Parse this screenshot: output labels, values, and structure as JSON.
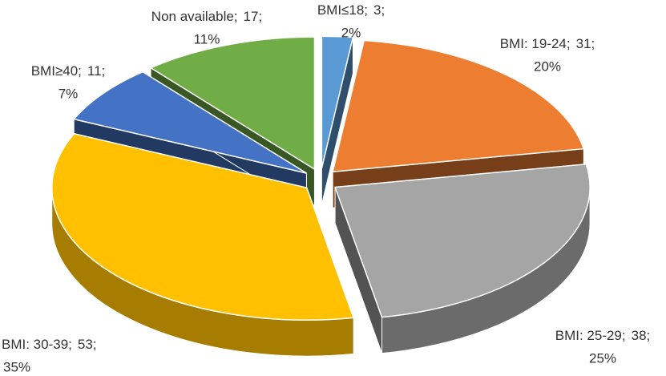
{
  "chart_data": {
    "type": "pie3d",
    "categories": [
      "BMI≤18;",
      "BMI: 19-24;",
      "BMI: 25-29;",
      "BMI: 30-39;",
      "BMI≥40;",
      "Non available;"
    ],
    "values": [
      3,
      31,
      38,
      53,
      11,
      17
    ],
    "value_labels": [
      "3;",
      "31;",
      "38;",
      "53;",
      "11;",
      "17;"
    ],
    "percents": [
      2,
      20,
      25,
      35,
      7,
      11
    ],
    "percent_labels": [
      "2%",
      "20%",
      "25%",
      "35%",
      "7%",
      "11%"
    ],
    "colors": [
      "#5b9bd5",
      "#ed7d31",
      "#a5a5a5",
      "#ffc000",
      "#4472c4",
      "#70ad47"
    ]
  }
}
